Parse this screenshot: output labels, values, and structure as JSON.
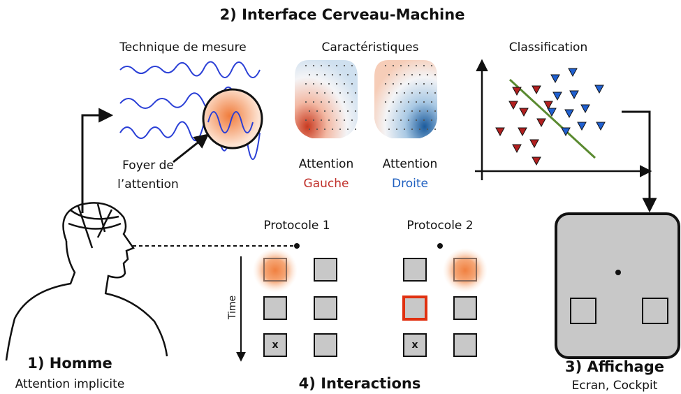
{
  "title": "2) Interface Cerveau-Machine",
  "sections": {
    "measure": "Technique de mesure",
    "features": "Caractéristiques",
    "classification": "Classification"
  },
  "focus": [
    "Foyer de",
    "l’attention"
  ],
  "maps": [
    {
      "label": "Attention",
      "side": "Gauche"
    },
    {
      "label": "Attention",
      "side": "Droite"
    }
  ],
  "protocols": [
    "Protocole 1",
    "Protocole 2"
  ],
  "time": "Time",
  "marks": [
    "x",
    "x"
  ],
  "human": {
    "title": "1) Homme",
    "subtitle": "Attention implicite"
  },
  "interactions": "4) Interactions",
  "display": {
    "title": "3) Affichage",
    "subtitle": "Ecran, Cockpit"
  }
}
